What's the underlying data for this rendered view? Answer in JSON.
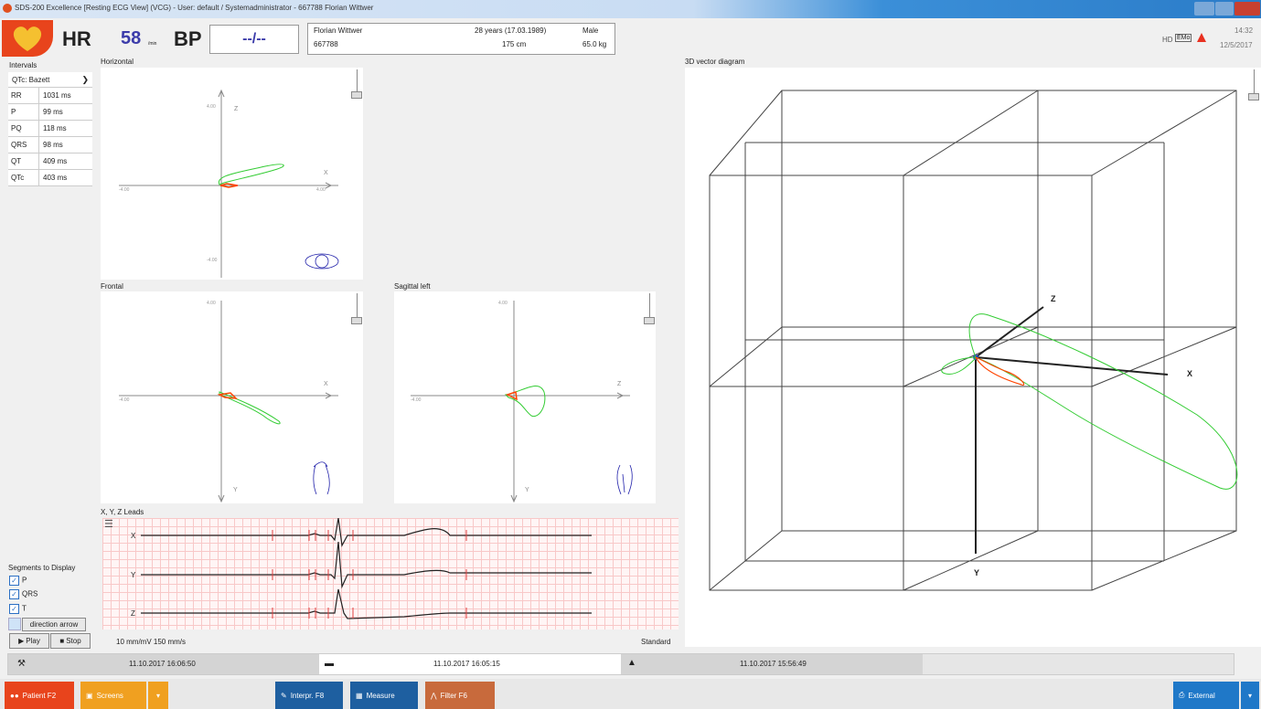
{
  "window": {
    "title": "SDS-200 Excellence [Resting ECG View] (VCG) - User: default / Systemadministrator - 667788 Florian Wittwer"
  },
  "header": {
    "hr_label": "HR",
    "hr_value": "58",
    "hr_unit": "/min",
    "bp_label": "BP",
    "bp_value": "--/--",
    "patient_name": "Florian Wittwer",
    "patient_id": "667788",
    "age": "28 years (17.03.1989)",
    "height": "175 cm",
    "sex": "Male",
    "weight": "65.0 kg",
    "hd_label": "HD",
    "filter_label": "EMo",
    "time": "14:32",
    "date": "12/5/2017"
  },
  "intervals": {
    "title": "Intervals",
    "qtc_select": "QTc: Bazett",
    "rows": [
      {
        "label": "RR",
        "value": "1031 ms"
      },
      {
        "label": "P",
        "value": "99 ms"
      },
      {
        "label": "PQ",
        "value": "118 ms"
      },
      {
        "label": "QRS",
        "value": "98 ms"
      },
      {
        "label": "QT",
        "value": "409 ms"
      },
      {
        "label": "QTc",
        "value": "403 ms"
      }
    ]
  },
  "plots": {
    "horizontal": {
      "title": "Horizontal",
      "ax1": "X",
      "ax2": "Z",
      "tick_pos": "4.00",
      "tick_neg": "-4.00"
    },
    "frontal": {
      "title": "Frontal",
      "ax1": "X",
      "ax2": "Y",
      "tick_pos": "4.00",
      "tick_neg": "-4.00"
    },
    "sagittal": {
      "title": "Sagittal left",
      "ax1": "Z",
      "ax2": "Y",
      "tick_pos": "4.00",
      "tick_neg": "-4.00"
    },
    "vector3d": {
      "title": "3D vector diagram",
      "x": "X",
      "y": "Y",
      "z": "Z"
    }
  },
  "leads": {
    "title": "X, Y, Z Leads",
    "lead_x": "X",
    "lead_y": "Y",
    "lead_z": "Z",
    "scale": "10 mm/mV  150 mm/s",
    "mode": "Standard"
  },
  "segments": {
    "title": "Segments to Display",
    "p": "P",
    "qrs": "QRS",
    "t": "T",
    "direction_arrow": "direction arrow",
    "play": "Play",
    "stop": "Stop"
  },
  "timeline": {
    "t1": "11.10.2017 16:06:50",
    "t2": "11.10.2017 16:05:15",
    "t3": "11.10.2017 15:56:49"
  },
  "toolbar": {
    "patient": "Patient F2",
    "screens": "Screens",
    "interp": "Interpr. F8",
    "measure": "Measure",
    "filter": "Filter F6",
    "external": "External"
  },
  "colors": {
    "accent_orange": "#e8441c",
    "screens_orange": "#f0a020",
    "blue_button": "#1e5fa0",
    "filter_brown": "#c86a3c",
    "external_blue": "#1f78c8",
    "loop_green": "#33cc33",
    "loop_red": "#ff4400"
  }
}
